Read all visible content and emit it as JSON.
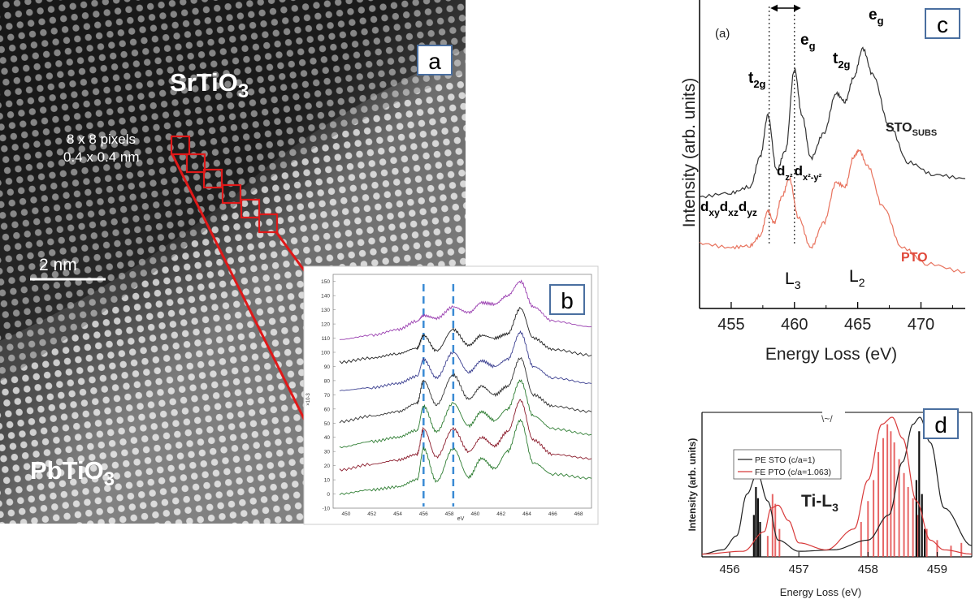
{
  "panel_a": {
    "label": "a",
    "top_material": "SrTiO",
    "top_sub": "3",
    "bottom_material": "PbTiO",
    "bottom_sub": "3",
    "pixel_note_1": "8 x 8 pixels",
    "pixel_note_2": "0.4 x 0.4 nm",
    "scale_bar": "2 nm"
  },
  "panel_b": {
    "label": "b",
    "ylabel": "×10-3",
    "xlabel": "eV",
    "yticks": [
      "150",
      "140",
      "130",
      "120",
      "110",
      "100",
      "90",
      "80",
      "70",
      "60",
      "50",
      "40",
      "30",
      "20",
      "10",
      "0",
      "-10"
    ],
    "xticks": [
      "450",
      "452",
      "454",
      "456",
      "458",
      "460",
      "462",
      "464",
      "466",
      "468"
    ]
  },
  "panel_c": {
    "label": "c",
    "tag": "(a)",
    "ylabel": "Intensity (arb. units)",
    "xlabel": "Energy Loss (eV)",
    "xticks": [
      "455",
      "460",
      "465",
      "470"
    ],
    "sto_label": "STO",
    "sto_sub": "SUBS",
    "pto_label": "PTO",
    "t2g": "t",
    "t2g_sub": "2g",
    "eg": "e",
    "eg_sub": "g",
    "L3": "L",
    "L3_sub": "3",
    "L2": "L",
    "L2_sub": "2",
    "dxy": "d",
    "dxy_sub": "xy",
    "dxz": "d",
    "dxz_sub": "xz",
    "dyz": "d",
    "dyz_sub": "yz",
    "dz2": "d",
    "dz2_sub": "z²",
    "dx2y2": "d",
    "dx2y2_sub": "x²-y²"
  },
  "panel_d": {
    "label": "d",
    "ylabel": "Intensity (arb. units)",
    "xlabel": "Energy Loss (eV)",
    "xticks": [
      "456",
      "457",
      "458",
      "459"
    ],
    "legend": [
      "PE STO (c/a=1)",
      "FE PTO (c/a=1.063)"
    ],
    "title": "Ti-L",
    "title_sub": "3"
  },
  "colors": {
    "red_arrow": "#e01818",
    "sto_curve": "#333333",
    "pto_curve": "#e8735e",
    "label_border": "#4a6fa0",
    "dashed": "#3a8ad4"
  },
  "chart_data": [
    {
      "type": "line",
      "panel": "b",
      "xlabel": "eV",
      "ylabel": "×10-3",
      "xlim": [
        449,
        469
      ],
      "ylim": [
        -10,
        155
      ],
      "markers": [
        456.0,
        458.3
      ],
      "series": [
        {
          "color": "#9a3fb0",
          "x": [
            449.5,
            452,
            454,
            455.5,
            456,
            457,
            458.3,
            459.5,
            460.5,
            461.5,
            462.5,
            463.5,
            464.5,
            466,
            469
          ],
          "y": [
            109,
            112,
            116,
            122,
            126,
            124,
            132,
            128,
            135,
            134,
            140,
            150,
            132,
            122,
            118
          ]
        },
        {
          "color": "#222222",
          "x": [
            449.5,
            452,
            454,
            455.5,
            456,
            457,
            458.3,
            459.5,
            460.5,
            461.5,
            462.5,
            463.5,
            464.5,
            466,
            469
          ],
          "y": [
            93,
            96,
            99,
            103,
            112,
            101,
            116,
            105,
            112,
            110,
            113,
            131,
            110,
            102,
            98
          ]
        },
        {
          "color": "#3b3f90",
          "x": [
            449.5,
            452,
            454,
            455.5,
            456,
            457,
            458.3,
            459.5,
            460.5,
            461.5,
            462.5,
            463.5,
            464.5,
            466,
            469
          ],
          "y": [
            73,
            75,
            78,
            83,
            95,
            82,
            100,
            86,
            94,
            90,
            95,
            114,
            90,
            82,
            78
          ]
        },
        {
          "color": "#333333",
          "x": [
            449.5,
            452,
            454,
            455.5,
            456,
            457,
            458.3,
            459.5,
            460.5,
            461.5,
            462.5,
            463.5,
            464.5,
            466,
            469
          ],
          "y": [
            51,
            55,
            58,
            64,
            80,
            63,
            84,
            67,
            76,
            70,
            76,
            96,
            70,
            62,
            58
          ]
        },
        {
          "color": "#2e7d32",
          "x": [
            449.5,
            452,
            454,
            455.5,
            456,
            457,
            458.3,
            459.5,
            460.5,
            461.5,
            462.5,
            463.5,
            464.5,
            466,
            469
          ],
          "y": [
            33,
            37,
            40,
            45,
            62,
            44,
            64,
            48,
            58,
            52,
            60,
            80,
            55,
            46,
            42
          ]
        },
        {
          "color": "#8b1c2c",
          "x": [
            449.5,
            452,
            454,
            455.5,
            456,
            457,
            458.3,
            459.5,
            460.5,
            461.5,
            462.5,
            463.5,
            464.5,
            466,
            469
          ],
          "y": [
            17,
            21,
            24,
            28,
            46,
            26,
            46,
            30,
            40,
            34,
            44,
            66,
            38,
            28,
            25
          ]
        },
        {
          "color": "#2e7d32",
          "x": [
            449.5,
            452,
            454,
            455.5,
            456,
            457,
            458.3,
            459.5,
            460.5,
            461.5,
            462.5,
            463.5,
            464.5,
            466,
            469
          ],
          "y": [
            0,
            3,
            5,
            10,
            32,
            9,
            32,
            12,
            25,
            18,
            30,
            52,
            22,
            14,
            11
          ]
        }
      ]
    },
    {
      "type": "line",
      "panel": "c",
      "xlabel": "Energy Loss (eV)",
      "ylabel": "Intensity (arb. units)",
      "xlim": [
        452.5,
        473.5
      ],
      "markers": [
        458.0,
        460.0
      ],
      "series": [
        {
          "name": "STO",
          "color": "#333333",
          "x": [
            452.5,
            455,
            456.5,
            457.3,
            457.9,
            458.6,
            459.3,
            460.0,
            460.6,
            461.3,
            462.3,
            463.3,
            464.0,
            464.7,
            465.4,
            466.2,
            467.5,
            469,
            471,
            473.5
          ],
          "y": [
            0.55,
            0.57,
            0.6,
            0.75,
            0.95,
            0.68,
            0.78,
            1.18,
            0.95,
            0.74,
            0.86,
            1.06,
            1.02,
            1.14,
            1.28,
            1.15,
            0.9,
            0.72,
            0.66,
            0.64
          ]
        },
        {
          "name": "PTO",
          "color": "#e8735e",
          "x": [
            452.5,
            455,
            456.5,
            457.3,
            457.9,
            458.4,
            459.0,
            459.6,
            460.3,
            461.3,
            462.3,
            463.3,
            464.0,
            464.7,
            465.1,
            465.8,
            467,
            468.5,
            470.5,
            473.5
          ],
          "y": [
            0.32,
            0.3,
            0.31,
            0.36,
            0.48,
            0.42,
            0.55,
            0.64,
            0.45,
            0.3,
            0.42,
            0.62,
            0.6,
            0.75,
            0.78,
            0.7,
            0.5,
            0.3,
            0.22,
            0.18
          ]
        }
      ]
    },
    {
      "type": "line",
      "panel": "d",
      "xlabel": "Energy Loss (eV)",
      "ylabel": "Intensity (arb. units)",
      "xlim": [
        455.6,
        459.5
      ],
      "series": [
        {
          "name": "PE STO (c/a=1)",
          "color": "#222222",
          "x": [
            455.6,
            455.9,
            456.1,
            456.25,
            456.4,
            456.55,
            456.7,
            457,
            457.5,
            458,
            458.3,
            458.5,
            458.65,
            458.75,
            458.9,
            459.1,
            459.5
          ],
          "y": [
            0.02,
            0.05,
            0.15,
            0.45,
            0.6,
            0.4,
            0.12,
            0.04,
            0.05,
            0.12,
            0.3,
            0.68,
            0.95,
            1.0,
            0.82,
            0.35,
            0.08
          ]
        },
        {
          "name": "FE PTO (c/a=1.063)",
          "color": "#d83a3a",
          "x": [
            455.6,
            456.2,
            456.5,
            456.6,
            456.7,
            456.85,
            457,
            457.4,
            457.8,
            458.0,
            458.2,
            458.35,
            458.5,
            458.7,
            458.9,
            459.1,
            459.5
          ],
          "y": [
            0.02,
            0.04,
            0.18,
            0.35,
            0.37,
            0.26,
            0.1,
            0.05,
            0.2,
            0.55,
            0.95,
            1.0,
            0.85,
            0.4,
            0.12,
            0.05,
            0.02
          ]
        }
      ]
    }
  ]
}
